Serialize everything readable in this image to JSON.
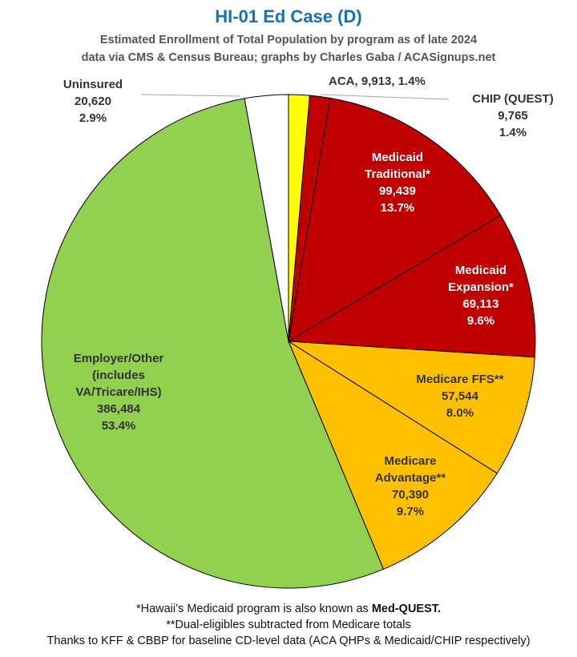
{
  "title": "HI-01 Ed Case (D)",
  "subtitle_line1": "Estimated Enrollment of Total Population by program as of late 2024",
  "subtitle_line2": "data via CMS & Census Bureau; graphs by Charles Gaba / ACASignups.net",
  "footer": {
    "note1_prefix": "*Hawaii’s Medicaid program is also known as ",
    "note1_bold": "Med-QUEST.",
    "note2": "**Dual-eligibles subtracted from Medicare totals",
    "note3": "Thanks to KFF & CBBP for baseline CD-level data (ACA QHPs & Medicaid/CHIP respectively)"
  },
  "chart_data": {
    "type": "pie",
    "start": "12 o'clock",
    "direction": "clockwise",
    "slices": [
      {
        "label": "ACA",
        "value": 9913,
        "value_text": "9,913",
        "percent_text": "1.4%",
        "color": "#ffff00",
        "label_color": "#333333"
      },
      {
        "label": "CHIP (QUEST)",
        "value": 9765,
        "value_text": "9,765",
        "percent_text": "1.4%",
        "color": "#c00000",
        "label_color": "#333333"
      },
      {
        "label": "Medicaid Traditional*",
        "value": 99439,
        "value_text": "99,439",
        "percent_text": "13.7%",
        "color": "#c00000",
        "label_color": "#ffffff"
      },
      {
        "label": "Medicaid Expansion*",
        "value": 69113,
        "value_text": "69,113",
        "percent_text": "9.6%",
        "color": "#c00000",
        "label_color": "#ffffff"
      },
      {
        "label": "Medicare FFS**",
        "value": 57544,
        "value_text": "57,544",
        "percent_text": "8.0%",
        "color": "#ffc000",
        "label_color": "#333333"
      },
      {
        "label": "Medicare Advantage**",
        "value": 70390,
        "value_text": "70,390",
        "percent_text": "9.7%",
        "color": "#ffc000",
        "label_color": "#333333"
      },
      {
        "label": "Employer/Other (includes VA/Tricare/IHS)",
        "value": 386484,
        "value_text": "386,484",
        "percent_text": "53.4%",
        "color": "#92d050",
        "label_color": "#333333"
      },
      {
        "label": "Uninsured",
        "value": 20620,
        "value_text": "20,620",
        "percent_text": "2.9%",
        "color": "#ffffff",
        "label_color": "#333333"
      }
    ]
  }
}
